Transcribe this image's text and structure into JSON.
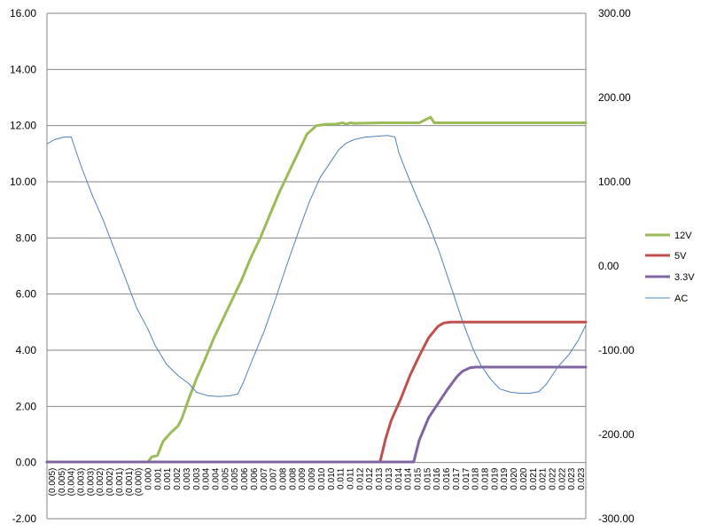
{
  "chart_data": {
    "type": "line",
    "title": "",
    "xlabel": "",
    "ylabel": "",
    "x_tick_labels": [
      "(0.005)",
      "(0.005)",
      "(0.004)",
      "(0.003)",
      "(0.003)",
      "(0.002)",
      "(0.002)",
      "(0.001)",
      "(0.001)",
      "(0.000)",
      "0.000",
      "0.001",
      "0.001",
      "0.002",
      "0.003",
      "0.003",
      "0.004",
      "0.004",
      "0.005",
      "0.005",
      "0.006",
      "0.006",
      "0.007",
      "0.007",
      "0.008",
      "0.008",
      "0.009",
      "0.009",
      "0.010",
      "0.010",
      "0.011",
      "0.011",
      "0.012",
      "0.012",
      "0.013",
      "0.013",
      "0.014",
      "0.014",
      "0.015",
      "0.015",
      "0.016",
      "0.016",
      "0.017",
      "0.017",
      "0.018",
      "0.018",
      "0.019",
      "0.019",
      "0.020",
      "0.020",
      "0.021",
      "0.021",
      "0.022",
      "0.022",
      "0.023",
      "0.023"
    ],
    "xlim": [
      -0.0054,
      0.0234
    ],
    "ylim_left": [
      -2,
      16
    ],
    "yticks_left": [
      "-2.00",
      "0.00",
      "2.00",
      "4.00",
      "6.00",
      "8.00",
      "10.00",
      "12.00",
      "14.00",
      "16.00"
    ],
    "ylim_right": [
      -300,
      300
    ],
    "yticks_right": [
      "-300.00",
      "-200.00",
      "-100.00",
      "0.00",
      "100.00",
      "200.00",
      "300.00"
    ],
    "grid": "horizontal",
    "legend_position": "right",
    "series": [
      {
        "name": "12V",
        "axis": "left",
        "color": "#9bbb59",
        "width": 3,
        "x": [
          -0.0054,
          0.0,
          0.0002,
          0.0005,
          0.0008,
          0.0012,
          0.0016,
          0.0018,
          0.0022,
          0.0026,
          0.003,
          0.0035,
          0.004,
          0.0045,
          0.005,
          0.0055,
          0.006,
          0.0065,
          0.007,
          0.0075,
          0.008,
          0.0085,
          0.009,
          0.0095,
          0.01,
          0.0104,
          0.0106,
          0.0108,
          0.011,
          0.0125,
          0.0145,
          0.0151,
          0.0153,
          0.0156,
          0.0165,
          0.0234
        ],
        "y": [
          0.02,
          0.02,
          0.2,
          0.25,
          0.75,
          1.05,
          1.3,
          1.55,
          2.3,
          3.0,
          3.6,
          4.4,
          5.1,
          5.8,
          6.5,
          7.3,
          8.0,
          8.8,
          9.6,
          10.3,
          11.0,
          11.7,
          12.0,
          12.05,
          12.05,
          12.1,
          12.05,
          12.1,
          12.08,
          12.1,
          12.1,
          12.3,
          12.1,
          12.1,
          12.1,
          12.1
        ]
      },
      {
        "name": "5V",
        "axis": "left",
        "color": "#c0504d",
        "width": 3,
        "x": [
          -0.0054,
          0.0124,
          0.0127,
          0.013,
          0.0135,
          0.014,
          0.0145,
          0.015,
          0.0155,
          0.0158,
          0.0162,
          0.0168,
          0.0234
        ],
        "y": [
          0.02,
          0.02,
          0.85,
          1.5,
          2.25,
          3.1,
          3.8,
          4.45,
          4.85,
          4.97,
          5.0,
          5.0,
          5.0
        ]
      },
      {
        "name": "3.3V",
        "axis": "left",
        "color": "#8064a2",
        "width": 3,
        "x": [
          -0.0054,
          0.0142,
          0.0145,
          0.015,
          0.0155,
          0.016,
          0.0165,
          0.0168,
          0.0172,
          0.0175,
          0.0178,
          0.0234
        ],
        "y": [
          0.02,
          0.02,
          0.8,
          1.6,
          2.1,
          2.6,
          3.05,
          3.25,
          3.37,
          3.4,
          3.4,
          3.4
        ]
      },
      {
        "name": "AC",
        "axis": "right",
        "color": "#4f81bd",
        "width": 1,
        "x": [
          -0.0054,
          -0.005,
          -0.0045,
          -0.0041,
          -0.0036,
          -0.003,
          -0.0024,
          -0.0018,
          -0.0012,
          -0.0006,
          0.0,
          0.0004,
          0.001,
          0.0016,
          0.0022,
          0.0026,
          0.0032,
          0.0038,
          0.0044,
          0.0048,
          0.0051,
          0.0056,
          0.0062,
          0.0068,
          0.0074,
          0.008,
          0.0086,
          0.0092,
          0.0098,
          0.0102,
          0.0106,
          0.011,
          0.0116,
          0.0122,
          0.0128,
          0.0132,
          0.0134,
          0.0138,
          0.0144,
          0.015,
          0.0156,
          0.0162,
          0.0168,
          0.0174,
          0.0178,
          0.0183,
          0.0188,
          0.0194,
          0.0199,
          0.0204,
          0.0209,
          0.0213,
          0.0219,
          0.0225,
          0.023,
          0.0234
        ],
        "y": [
          145,
          150,
          153,
          153,
          120,
          85,
          55,
          20,
          -15,
          -50,
          -75,
          -95,
          -117,
          -130,
          -140,
          -150,
          -154,
          -155,
          -154,
          -152,
          -138,
          -110,
          -78,
          -40,
          0,
          38,
          75,
          105,
          125,
          138,
          146,
          150,
          153,
          154,
          155,
          153,
          135,
          112,
          80,
          50,
          15,
          -25,
          -65,
          -100,
          -118,
          -134,
          -146,
          -150,
          -151,
          -151,
          -149,
          -140,
          -120,
          -105,
          -88,
          -70
        ]
      }
    ]
  }
}
